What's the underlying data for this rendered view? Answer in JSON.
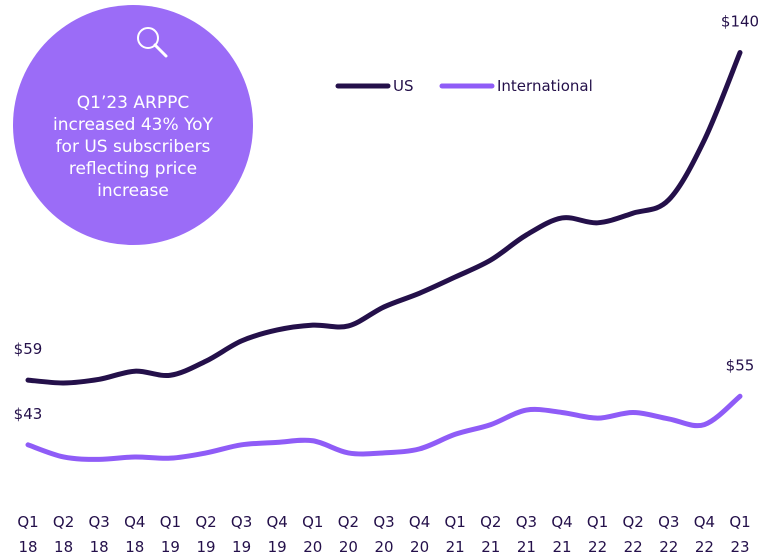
{
  "chart_data": {
    "type": "line",
    "annotation": [
      "Q1’23 ARPPC",
      "increased 43% YoY",
      "for US subscribers",
      "reflecting price",
      "increase"
    ],
    "categories": [
      "Q1 18",
      "Q2 18",
      "Q3 18",
      "Q4 18",
      "Q1 19",
      "Q2 19",
      "Q3 19",
      "Q4 19",
      "Q1 20",
      "Q2 20",
      "Q3 20",
      "Q4 20",
      "Q1 21",
      "Q2 21",
      "Q3 21",
      "Q4 21",
      "Q1 22",
      "Q2 22",
      "Q3 22",
      "Q4 22",
      "Q1 23"
    ],
    "series": [
      {
        "name": "US",
        "color": "#24104a",
        "values": [
          59,
          58.3,
          59.2,
          61.2,
          60.2,
          63.7,
          68.7,
          71.4,
          72.6,
          72.4,
          77.1,
          80.5,
          84.5,
          88.7,
          94.9,
          99.1,
          97.9,
          100.3,
          103.6,
          118.4,
          140
        ],
        "value_labels": [
          "$59",
          null,
          null,
          null,
          null,
          null,
          null,
          null,
          null,
          null,
          null,
          null,
          null,
          null,
          null,
          null,
          null,
          null,
          null,
          null,
          "$140"
        ]
      },
      {
        "name": "International",
        "color": "#8f5cf7",
        "values": [
          43,
          40,
          39.4,
          40,
          39.7,
          41,
          43,
          43.6,
          44,
          41,
          41,
          42,
          45.6,
          48,
          51.6,
          51,
          49.6,
          51,
          49.4,
          48,
          55
        ],
        "value_labels": [
          "$43",
          null,
          null,
          null,
          null,
          null,
          null,
          null,
          null,
          null,
          null,
          null,
          null,
          null,
          null,
          null,
          null,
          null,
          null,
          null,
          "$55"
        ]
      }
    ],
    "ylim": [
      16,
      153
    ]
  }
}
